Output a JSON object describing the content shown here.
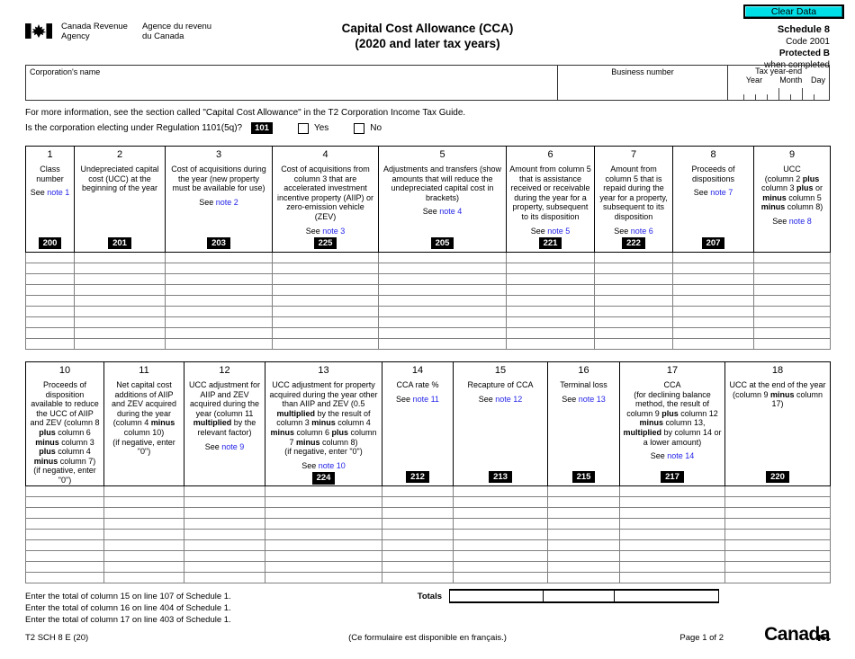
{
  "colors": {
    "clear_button_bg": "#00dfe8",
    "note_link": "#2424e8",
    "code_box_bg": "#000000"
  },
  "header": {
    "clear_button": "Clear Data",
    "logo_en1": "Canada Revenue",
    "logo_en2": "Agency",
    "logo_fr1": "Agence du revenu",
    "logo_fr2": "du Canada",
    "title_line1": "Capital Cost Allowance (CCA)",
    "title_line2": "(2020 and later tax years)",
    "schedule": "Schedule 8",
    "code": "Code 2001",
    "protected": "Protected B",
    "protected_sub": "when completed"
  },
  "id_box": {
    "corp_name_label": "Corporation's name",
    "business_number_label": "Business number",
    "tax_year_end_label": "Tax year-end",
    "year_label": "Year",
    "month_label": "Month",
    "day_label": "Day"
  },
  "info_line": "For more information, see the section called \"Capital Cost Allowance\" in the T2 Corporation Income Tax Guide.",
  "question": {
    "text": "Is the corporation electing under Regulation 1101(5q)?",
    "code": "101",
    "yes_label": "Yes",
    "no_label": "No"
  },
  "table1": {
    "columns": [
      {
        "num": "1",
        "desc": [
          {
            "t": "Class number"
          }
        ],
        "note_parts": [
          {
            "t": "See "
          },
          {
            "t": "note 1",
            "c": "link"
          }
        ],
        "code": "200"
      },
      {
        "num": "2",
        "desc": [
          {
            "t": "Undepreciated capital cost (UCC) at the beginning of the year"
          }
        ],
        "code": "201"
      },
      {
        "num": "3",
        "desc": [
          {
            "t": "Cost of acquisitions during the year (new property must be available for use)"
          }
        ],
        "note_parts": [
          {
            "t": "See "
          },
          {
            "t": "note 2",
            "c": "link"
          }
        ],
        "code": "203"
      },
      {
        "num": "4",
        "desc": [
          {
            "t": "Cost of acquisitions from column 3 that are accelerated investment incentive property (AIIP) or zero-emission vehicle (ZEV)"
          }
        ],
        "note_parts": [
          {
            "t": "See "
          },
          {
            "t": "note 3",
            "c": "link"
          }
        ],
        "code": "225"
      },
      {
        "num": "5",
        "desc": [
          {
            "t": "Adjustments and transfers (show amounts that will reduce the undepreciated capital cost in brackets)"
          }
        ],
        "note_parts": [
          {
            "t": "See "
          },
          {
            "t": "note 4",
            "c": "link"
          }
        ],
        "code": "205"
      },
      {
        "num": "6",
        "desc": [
          {
            "t": "Amount from column 5 that is assistance received or receivable during the year for a property, subsequent to its disposition"
          }
        ],
        "note_parts": [
          {
            "t": "See "
          },
          {
            "t": "note 5",
            "c": "link"
          }
        ],
        "code": "221"
      },
      {
        "num": "7",
        "desc": [
          {
            "t": "Amount from column 5 that is repaid during the year for a property, subsequent to its disposition"
          }
        ],
        "note_parts": [
          {
            "t": "See "
          },
          {
            "t": "note 6",
            "c": "link"
          }
        ],
        "code": "222"
      },
      {
        "num": "8",
        "desc": [
          {
            "t": "Proceeds of dispositions"
          }
        ],
        "note_parts": [
          {
            "t": "See "
          },
          {
            "t": "note 7",
            "c": "link"
          }
        ],
        "code": "207"
      },
      {
        "num": "9",
        "desc": [
          {
            "t": "UCC"
          },
          {
            "br": true
          },
          {
            "t": "(column 2 "
          },
          {
            "t": "plus",
            "c": "b"
          },
          {
            "t": " column 3 "
          },
          {
            "t": "plus",
            "c": "b"
          },
          {
            "t": " or "
          },
          {
            "t": "minus",
            "c": "b"
          },
          {
            "t": " column 5 "
          },
          {
            "t": "minus",
            "c": "b"
          },
          {
            "t": " column 8)"
          }
        ],
        "note_parts": [
          {
            "t": "See "
          },
          {
            "t": "note 8",
            "c": "link"
          }
        ]
      }
    ]
  },
  "table2": {
    "totals_label": "Totals",
    "columns": [
      {
        "num": "10",
        "desc": [
          {
            "t": "Proceeds of disposition available to reduce the UCC of AIIP and ZEV (column 8 "
          },
          {
            "t": "plus",
            "c": "b"
          },
          {
            "t": " column 6 "
          },
          {
            "t": "minus",
            "c": "b"
          },
          {
            "t": " column 3 "
          },
          {
            "t": "plus",
            "c": "b"
          },
          {
            "t": " column 4 "
          },
          {
            "t": "minus",
            "c": "b"
          },
          {
            "t": " column 7)"
          },
          {
            "br": true
          },
          {
            "t": "(if negative, enter \"0\")"
          }
        ]
      },
      {
        "num": "11",
        "desc": [
          {
            "t": "Net capital cost additions of AIIP and ZEV acquired during the year (column 4 "
          },
          {
            "t": "minus",
            "c": "b"
          },
          {
            "t": " column 10)"
          },
          {
            "br": true
          },
          {
            "t": "(if negative, enter \"0\")"
          }
        ]
      },
      {
        "num": "12",
        "desc": [
          {
            "t": "UCC adjustment for AIIP and ZEV acquired during the year (column 11 "
          },
          {
            "t": "multiplied",
            "c": "b"
          },
          {
            "t": " by the relevant factor)"
          }
        ],
        "note_parts": [
          {
            "t": "See "
          },
          {
            "t": "note 9",
            "c": "link"
          }
        ]
      },
      {
        "num": "13",
        "desc": [
          {
            "t": "UCC adjustment for property acquired during the year other than AIIP and ZEV (0.5 "
          },
          {
            "t": "multiplied",
            "c": "b"
          },
          {
            "t": " by the result of column 3 "
          },
          {
            "t": "minus",
            "c": "b"
          },
          {
            "t": " column 4 "
          },
          {
            "t": "minus",
            "c": "b"
          },
          {
            "t": " column 6 "
          },
          {
            "t": "plus",
            "c": "b"
          },
          {
            "t": " column 7 "
          },
          {
            "t": "minus",
            "c": "b"
          },
          {
            "t": " column 8)"
          },
          {
            "br": true
          },
          {
            "t": "(if negative, enter \"0\")"
          }
        ],
        "note_parts": [
          {
            "t": "See "
          },
          {
            "t": "note 10",
            "c": "link"
          }
        ],
        "code": "224"
      },
      {
        "num": "14",
        "desc": [
          {
            "t": "CCA rate %"
          }
        ],
        "note_parts": [
          {
            "t": "See "
          },
          {
            "t": "note 11",
            "c": "link"
          }
        ],
        "code": "212"
      },
      {
        "num": "15",
        "desc": [
          {
            "t": "Recapture of CCA"
          }
        ],
        "note_parts": [
          {
            "t": "See "
          },
          {
            "t": "note 12",
            "c": "link"
          }
        ],
        "code": "213"
      },
      {
        "num": "16",
        "desc": [
          {
            "t": "Terminal loss"
          }
        ],
        "note_parts": [
          {
            "t": "See "
          },
          {
            "t": "note 13",
            "c": "link"
          }
        ],
        "code": "215"
      },
      {
        "num": "17",
        "desc": [
          {
            "t": "CCA"
          },
          {
            "br": true
          },
          {
            "t": "(for declining balance method, the result of column 9 "
          },
          {
            "t": "plus",
            "c": "b"
          },
          {
            "t": " column 12 "
          },
          {
            "t": "minus",
            "c": "b"
          },
          {
            "t": " column 13, "
          },
          {
            "t": "multiplied",
            "c": "b"
          },
          {
            "t": " by column 14 or a lower amount)"
          }
        ],
        "note_parts": [
          {
            "t": "See "
          },
          {
            "t": "note 14",
            "c": "link"
          }
        ],
        "code": "217"
      },
      {
        "num": "18",
        "desc": [
          {
            "t": "UCC at the end of the year (column 9 "
          },
          {
            "t": "minus",
            "c": "b"
          },
          {
            "t": " column 17)"
          }
        ],
        "code": "220"
      }
    ]
  },
  "footer": {
    "line1": "Enter the total of column 15 on line 107 of Schedule 1.",
    "line2": "Enter the total of column 16 on line 404 of Schedule 1.",
    "line3": "Enter the total of column 17 on line 403 of Schedule 1.",
    "form_code": "T2 SCH 8 E (20)",
    "french_note": "(Ce formulaire est disponible en français.)",
    "page": "Page 1 of 2",
    "wordmark": "Canada"
  }
}
